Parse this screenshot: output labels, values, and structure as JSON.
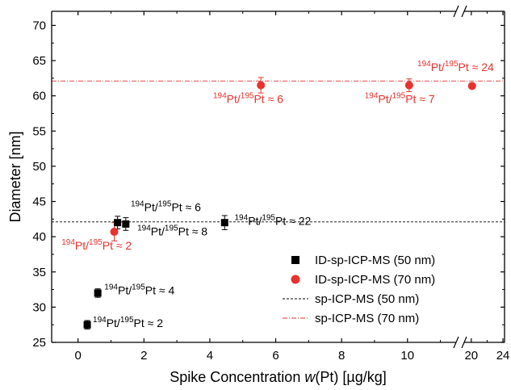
{
  "chart_data": {
    "type": "scatter",
    "xlabel_prefix": "Spike Concentration ",
    "xlabel_var": "w",
    "xlabel_suffix": "(Pt) [µg/kg]",
    "ylabel": "Diameter [nm]",
    "ylim": [
      25,
      72
    ],
    "xlim_main": [
      -0.8,
      11.5
    ],
    "xlim_break": [
      19,
      24.2
    ],
    "x_ticks_main": [
      "0",
      "2",
      "4",
      "6",
      "8",
      "10"
    ],
    "x_ticks_break": [
      "20",
      "24"
    ],
    "y_ticks": [
      "25",
      "30",
      "35",
      "40",
      "45",
      "50",
      "55",
      "60",
      "65",
      "70"
    ],
    "axis_break": true,
    "grid": false,
    "legend_position": "bottom-right",
    "colors": {
      "black_series": "#000000",
      "red_series": "#e8322e"
    },
    "series": [
      {
        "name": "ID-sp-ICP-MS (50 nm)",
        "marker": "square",
        "color": "#000000",
        "points": [
          {
            "x": 0.28,
            "y": 27.5,
            "err": 0.6
          },
          {
            "x": 0.6,
            "y": 32.0,
            "err": 0.6
          },
          {
            "x": 1.2,
            "y": 42.0,
            "err": 0.9
          },
          {
            "x": 1.45,
            "y": 41.8,
            "err": 0.9
          },
          {
            "x": 4.45,
            "y": 42.0,
            "err": 1.0
          }
        ]
      },
      {
        "name": "ID-sp-ICP-MS (70 nm)",
        "marker": "circle",
        "color": "#e8322e",
        "points": [
          {
            "x": 1.1,
            "y": 40.7,
            "err": 1.3
          },
          {
            "x": 5.55,
            "y": 61.5,
            "err": 1.1
          },
          {
            "x": 10.05,
            "y": 61.5,
            "err": 0.9
          },
          {
            "x": 20.1,
            "y": 61.4,
            "err": 0.4
          }
        ]
      }
    ],
    "reference_lines": [
      {
        "name": "sp-ICP-MS (50 nm)",
        "y": 42.1,
        "color": "#000000",
        "style": "dashed"
      },
      {
        "name": "sp-ICP-MS (70 nm)",
        "y": 62.1,
        "color": "#e8322e",
        "style": "dash-dot"
      }
    ],
    "annotations": [
      {
        "iso_a": "194",
        "iso_b": "195",
        "ratio": "≈ 2",
        "color": "#000000",
        "x": 0.45,
        "y": 27.2
      },
      {
        "iso_a": "194",
        "iso_b": "195",
        "ratio": "≈ 4",
        "color": "#000000",
        "x": 0.8,
        "y": 31.8
      },
      {
        "iso_a": "194",
        "iso_b": "195",
        "ratio": "≈ 6",
        "color": "#000000",
        "x": 1.6,
        "y": 43.6
      },
      {
        "iso_a": "194",
        "iso_b": "195",
        "ratio": "≈ 8",
        "color": "#000000",
        "x": 1.8,
        "y": 40.2
      },
      {
        "iso_a": "194",
        "iso_b": "195",
        "ratio": "≈ 22",
        "color": "#000000",
        "x": 4.75,
        "y": 41.7
      },
      {
        "iso_a": "194",
        "iso_b": "195",
        "ratio": "≈ 2",
        "color": "#e8322e",
        "x": -0.5,
        "y": 38.2
      },
      {
        "iso_a": "194",
        "iso_b": "195",
        "ratio": "≈ 6",
        "color": "#e8322e",
        "x": 4.1,
        "y": 59.0
      },
      {
        "iso_a": "194",
        "iso_b": "195",
        "ratio": "≈ 7",
        "color": "#e8322e",
        "x": 8.7,
        "y": 59.0
      },
      {
        "iso_a": "194",
        "iso_b": "195",
        "ratio": "≈ 24",
        "color": "#e8322e",
        "x": 10.3,
        "y": 63.5
      }
    ]
  }
}
